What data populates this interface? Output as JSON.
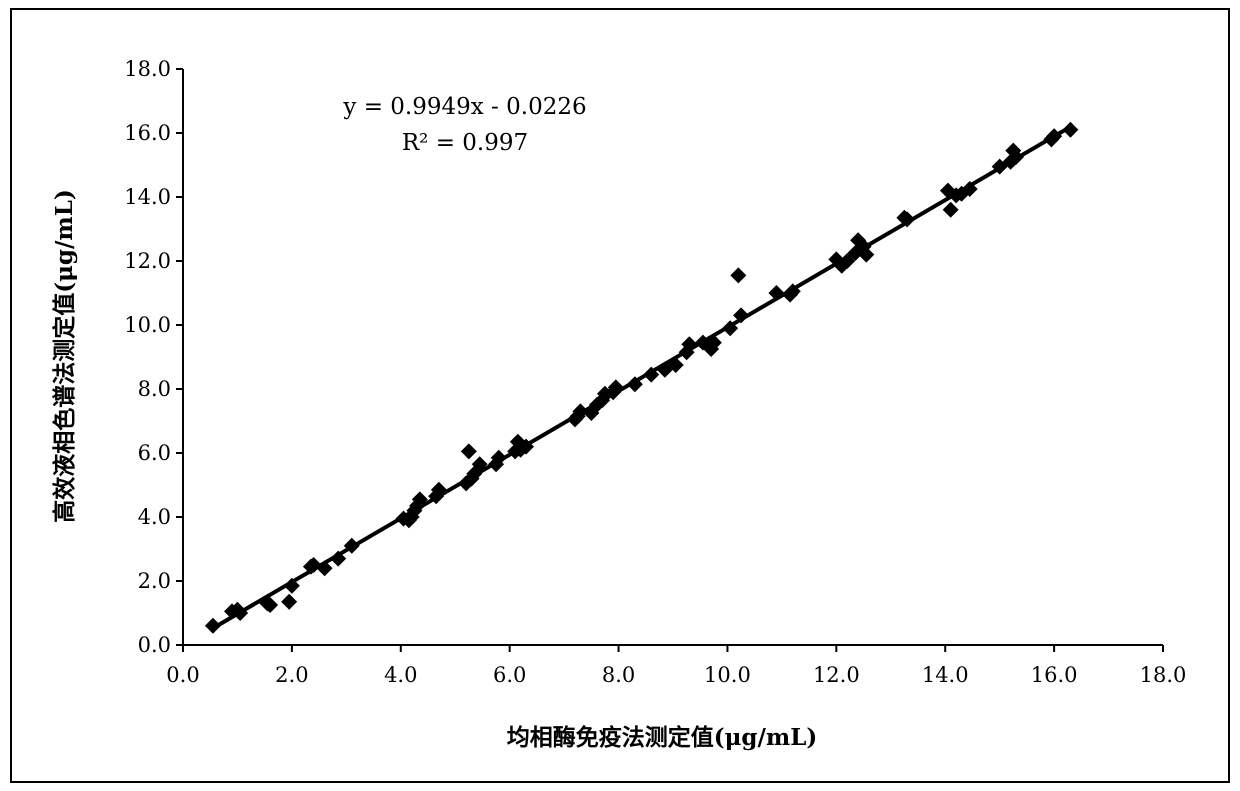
{
  "chart_data": {
    "type": "scatter",
    "title": "",
    "xlabel": "均相酶免疫法测定值(μg/mL)",
    "ylabel": "高效液相色谱法测定值(μg/mL)",
    "xlim": [
      0,
      18
    ],
    "ylim": [
      0,
      18
    ],
    "x_ticks": [
      "0.0",
      "2.0",
      "4.0",
      "6.0",
      "8.0",
      "10.0",
      "12.0",
      "14.0",
      "16.0",
      "18.0"
    ],
    "y_ticks": [
      "0.0",
      "2.0",
      "4.0",
      "6.0",
      "8.0",
      "10.0",
      "12.0",
      "14.0",
      "16.0",
      "18.0"
    ],
    "grid": false,
    "legend": "none",
    "annotations": {
      "equation": "y = 0.9949x - 0.0226",
      "r_squared": "R² = 0.997"
    },
    "trendline": {
      "slope": 0.9949,
      "intercept": -0.0226,
      "x_range": [
        0.55,
        16.3
      ]
    },
    "marker_color": "#000000",
    "series": [
      {
        "marker": "diamond",
        "x": [
          0.55,
          0.9,
          1.0,
          1.05,
          1.55,
          1.6,
          1.95,
          2.0,
          2.35,
          2.4,
          2.6,
          2.85,
          3.1,
          4.05,
          4.15,
          4.2,
          4.25,
          4.3,
          4.35,
          4.65,
          4.7,
          5.2,
          5.25,
          5.3,
          5.35,
          5.45,
          5.75,
          5.8,
          6.1,
          6.15,
          6.2,
          6.3,
          7.2,
          7.25,
          7.3,
          7.5,
          7.6,
          7.7,
          7.75,
          7.9,
          7.95,
          8.3,
          8.6,
          8.85,
          9.05,
          9.25,
          9.3,
          9.55,
          9.7,
          9.75,
          10.05,
          10.2,
          10.25,
          10.9,
          11.15,
          11.2,
          12.0,
          12.1,
          12.2,
          12.35,
          12.4,
          12.5,
          12.55,
          13.25,
          13.3,
          14.05,
          14.1,
          14.2,
          14.3,
          14.45,
          15.0,
          15.2,
          15.25,
          15.3,
          15.95,
          16.0,
          16.3
        ],
        "y": [
          0.6,
          1.05,
          1.1,
          1.0,
          1.3,
          1.25,
          1.35,
          1.85,
          2.45,
          2.5,
          2.4,
          2.7,
          3.1,
          3.95,
          3.9,
          4.0,
          4.2,
          4.35,
          4.55,
          4.65,
          4.85,
          5.05,
          6.05,
          5.2,
          5.35,
          5.65,
          5.65,
          5.85,
          6.05,
          6.35,
          6.1,
          6.2,
          7.05,
          7.15,
          7.3,
          7.25,
          7.5,
          7.65,
          7.85,
          7.9,
          8.05,
          8.15,
          8.45,
          8.6,
          8.75,
          9.15,
          9.4,
          9.45,
          9.25,
          9.45,
          9.9,
          11.55,
          10.3,
          11.0,
          10.95,
          11.05,
          12.05,
          11.85,
          12.0,
          12.25,
          12.65,
          12.45,
          12.2,
          13.35,
          13.3,
          14.2,
          13.6,
          14.05,
          14.1,
          14.25,
          14.95,
          15.1,
          15.45,
          15.25,
          15.8,
          15.9,
          16.1
        ]
      }
    ]
  }
}
